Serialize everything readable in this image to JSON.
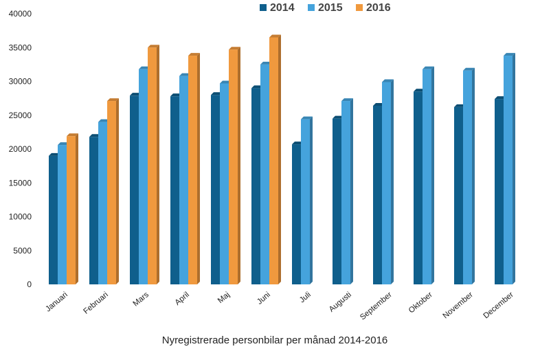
{
  "chart_data": {
    "type": "bar",
    "title": "Nyregistrerade personbilar per månad 2014-2016",
    "xlabel": "",
    "ylabel": "",
    "ylim": [
      0,
      40000
    ],
    "y_ticks": [
      0,
      5000,
      10000,
      15000,
      20000,
      25000,
      30000,
      35000,
      40000
    ],
    "grid": false,
    "legend_position": "top-center",
    "categories": [
      "Januari",
      "Februari",
      "Mars",
      "April",
      "Maj",
      "Juni",
      "Juli",
      "Augusti",
      "September",
      "Oktober",
      "November",
      "December"
    ],
    "series": [
      {
        "name": "2014",
        "color": "#0f5f8c",
        "values": [
          19000,
          21800,
          27900,
          27800,
          28000,
          29000,
          20700,
          24500,
          26400,
          28500,
          26200,
          27400
        ]
      },
      {
        "name": "2015",
        "color": "#45a3dc",
        "values": [
          20600,
          24000,
          31800,
          30800,
          29700,
          32500,
          24400,
          27100,
          29900,
          31800,
          31600,
          33800
        ]
      },
      {
        "name": "2016",
        "color": "#f0993e",
        "values": [
          21900,
          27100,
          35000,
          33800,
          34700,
          36500,
          null,
          null,
          null,
          null,
          null,
          null
        ]
      }
    ]
  }
}
